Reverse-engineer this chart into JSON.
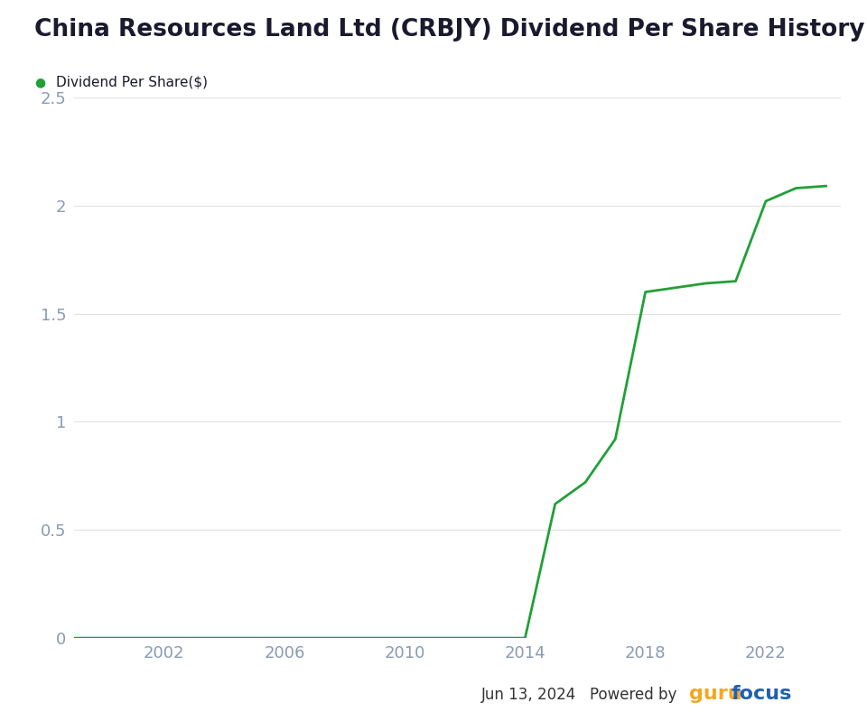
{
  "title": "China Resources Land Ltd (CRBJY) Dividend Per Share History",
  "legend_label": "Dividend Per Share($)",
  "line_color": "#21a038",
  "background_color": "#ffffff",
  "plot_bg_color": "#ffffff",
  "grid_color": "#e0e0e0",
  "title_color": "#1a1a2e",
  "tick_label_color": "#8a9ab5",
  "years": [
    1999,
    2000,
    2001,
    2002,
    2003,
    2004,
    2005,
    2006,
    2007,
    2008,
    2009,
    2010,
    2011,
    2012,
    2013,
    2014,
    2015,
    2016,
    2017,
    2018,
    2019,
    2020,
    2021,
    2022,
    2023,
    2024
  ],
  "values": [
    0,
    0,
    0,
    0,
    0,
    0,
    0,
    0,
    0,
    0,
    0,
    0,
    0,
    0,
    0,
    0,
    0.62,
    0.72,
    0.92,
    1.6,
    1.62,
    1.64,
    1.65,
    2.02,
    2.08,
    2.09
  ],
  "xlim": [
    1999,
    2024.5
  ],
  "ylim": [
    0,
    2.5
  ],
  "yticks": [
    0,
    0.5,
    1,
    1.5,
    2,
    2.5
  ],
  "xticks": [
    2002,
    2006,
    2010,
    2014,
    2018,
    2022
  ],
  "footer_date": "Jun 13, 2024",
  "footer_powered": "Powered by",
  "footer_guru": "guru",
  "footer_focus": "focus",
  "guru_color": "#f5a623",
  "focus_color": "#2060b0",
  "title_fontsize": 19,
  "tick_fontsize": 13,
  "legend_fontsize": 11,
  "footer_fontsize": 12,
  "guru_fontsize": 16,
  "line_width": 2.0
}
